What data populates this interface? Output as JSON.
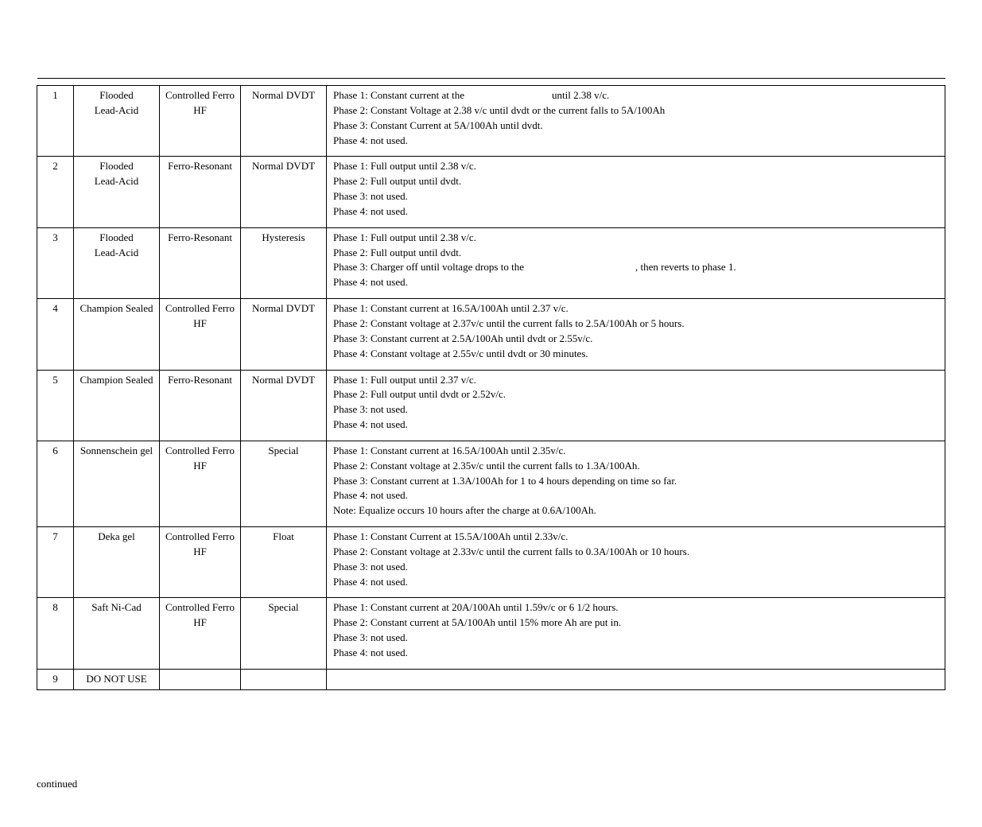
{
  "rows": [
    {
      "num": "1",
      "battery_l1": "Flooded",
      "battery_l2": "Lead-Acid",
      "charger_l1": "Controlled Ferro",
      "charger_l2": "HF",
      "profile": "Normal DVDT",
      "p1_a": "Phase 1: Constant current at the",
      "p1_gap": 110,
      "p1_b": "until 2.38 v/c.",
      "p2": "Phase 2: Constant Voltage at 2.38 v/c until dvdt or the current falls to 5A/100Ah",
      "p3": "Phase 3: Constant Current at 5A/100Ah until dvdt.",
      "p4": "Phase 4: not used.",
      "p5": ""
    },
    {
      "num": "2",
      "battery_l1": "Flooded",
      "battery_l2": "Lead-Acid",
      "charger_l1": "Ferro-Resonant",
      "charger_l2": "",
      "profile": "Normal DVDT",
      "p1_a": "Phase 1: Full output until 2.38 v/c.",
      "p1_gap": 0,
      "p1_b": "",
      "p2": "Phase 2: Full output until dvdt.",
      "p3": "Phase 3: not used.",
      "p4": "Phase 4: not used.",
      "p5": ""
    },
    {
      "num": "3",
      "battery_l1": "Flooded",
      "battery_l2": "Lead-Acid",
      "charger_l1": "Ferro-Resonant",
      "charger_l2": "",
      "profile": "Hysteresis",
      "p1_a": "Phase 1: Full output until 2.38 v/c.",
      "p1_gap": 0,
      "p1_b": "",
      "p2": "Phase 2: Full output until dvdt.",
      "p3_a": "Phase 3: Charger off until voltage drops to the",
      "p3_gap": 140,
      "p3_b": ", then reverts to phase 1.",
      "p4": "Phase 4: not used.",
      "p5": ""
    },
    {
      "num": "4",
      "battery_l1": "Champion Sealed",
      "battery_l2": "",
      "charger_l1": "Controlled Ferro",
      "charger_l2": "HF",
      "profile": "Normal DVDT",
      "p1_a": "Phase 1: Constant current at 16.5A/100Ah until 2.37 v/c.",
      "p1_gap": 0,
      "p1_b": "",
      "p2": "Phase 2: Constant voltage at 2.37v/c until the current falls to 2.5A/100Ah or 5 hours.",
      "p3": "Phase 3: Constant current at 2.5A/100Ah until dvdt or 2.55v/c.",
      "p4": "Phase 4: Constant voltage at 2.55v/c until dvdt or 30 minutes.",
      "p5": ""
    },
    {
      "num": "5",
      "battery_l1": "Champion Sealed",
      "battery_l2": "",
      "charger_l1": "Ferro-Resonant",
      "charger_l2": "",
      "profile": "Normal DVDT",
      "p1_a": "Phase 1: Full output until 2.37 v/c.",
      "p1_gap": 0,
      "p1_b": "",
      "p2": "Phase 2: Full output until dvdt or 2.52v/c.",
      "p3": "Phase 3: not used.",
      "p4": "Phase 4: not used.",
      "p5": ""
    },
    {
      "num": "6",
      "battery_l1": "Sonnenschein gel",
      "battery_l2": "",
      "charger_l1": "Controlled Ferro",
      "charger_l2": "HF",
      "profile": "Special",
      "p1_a": "Phase 1: Constant current at 16.5A/100Ah until 2.35v/c.",
      "p1_gap": 0,
      "p1_b": "",
      "p2": "Phase 2: Constant voltage at 2.35v/c until the current falls to 1.3A/100Ah.",
      "p3": "Phase 3: Constant current at 1.3A/100Ah for 1 to 4 hours depending on time so far.",
      "p4": "Phase 4: not used.",
      "p5": "Note: Equalize occurs 10 hours after the charge at 0.6A/100Ah."
    },
    {
      "num": "7",
      "battery_l1": "Deka gel",
      "battery_l2": "",
      "charger_l1": "Controlled Ferro",
      "charger_l2": "HF",
      "profile": "Float",
      "p1_a": "Phase 1: Constant Current at 15.5A/100Ah until 2.33v/c.",
      "p1_gap": 0,
      "p1_b": "",
      "p2": "Phase 2: Constant voltage at 2.33v/c until the current falls to 0.3A/100Ah or 10 hours.",
      "p3": "Phase 3: not used.",
      "p4": "Phase 4: not used.",
      "p5": ""
    },
    {
      "num": "8",
      "battery_l1": "Saft Ni-Cad",
      "battery_l2": "",
      "charger_l1": "Controlled Ferro",
      "charger_l2": "HF",
      "profile": "Special",
      "p1_a": "Phase 1: Constant current at 20A/100Ah until 1.59v/c or 6 1/2 hours.",
      "p1_gap": 0,
      "p1_b": "",
      "p2": "Phase 2: Constant current at 5A/100Ah until 15% more Ah are put in.",
      "p3": "Phase 3: not used.",
      "p4": "Phase 4: not used.",
      "p5": ""
    },
    {
      "num": "9",
      "battery_l1": "DO NOT USE",
      "battery_l2": "",
      "charger_l1": "",
      "charger_l2": "",
      "profile": "",
      "p1_a": "",
      "p1_gap": 0,
      "p1_b": "",
      "p2": "",
      "p3": "",
      "p4": "",
      "p5": ""
    }
  ],
  "footer": "continued"
}
